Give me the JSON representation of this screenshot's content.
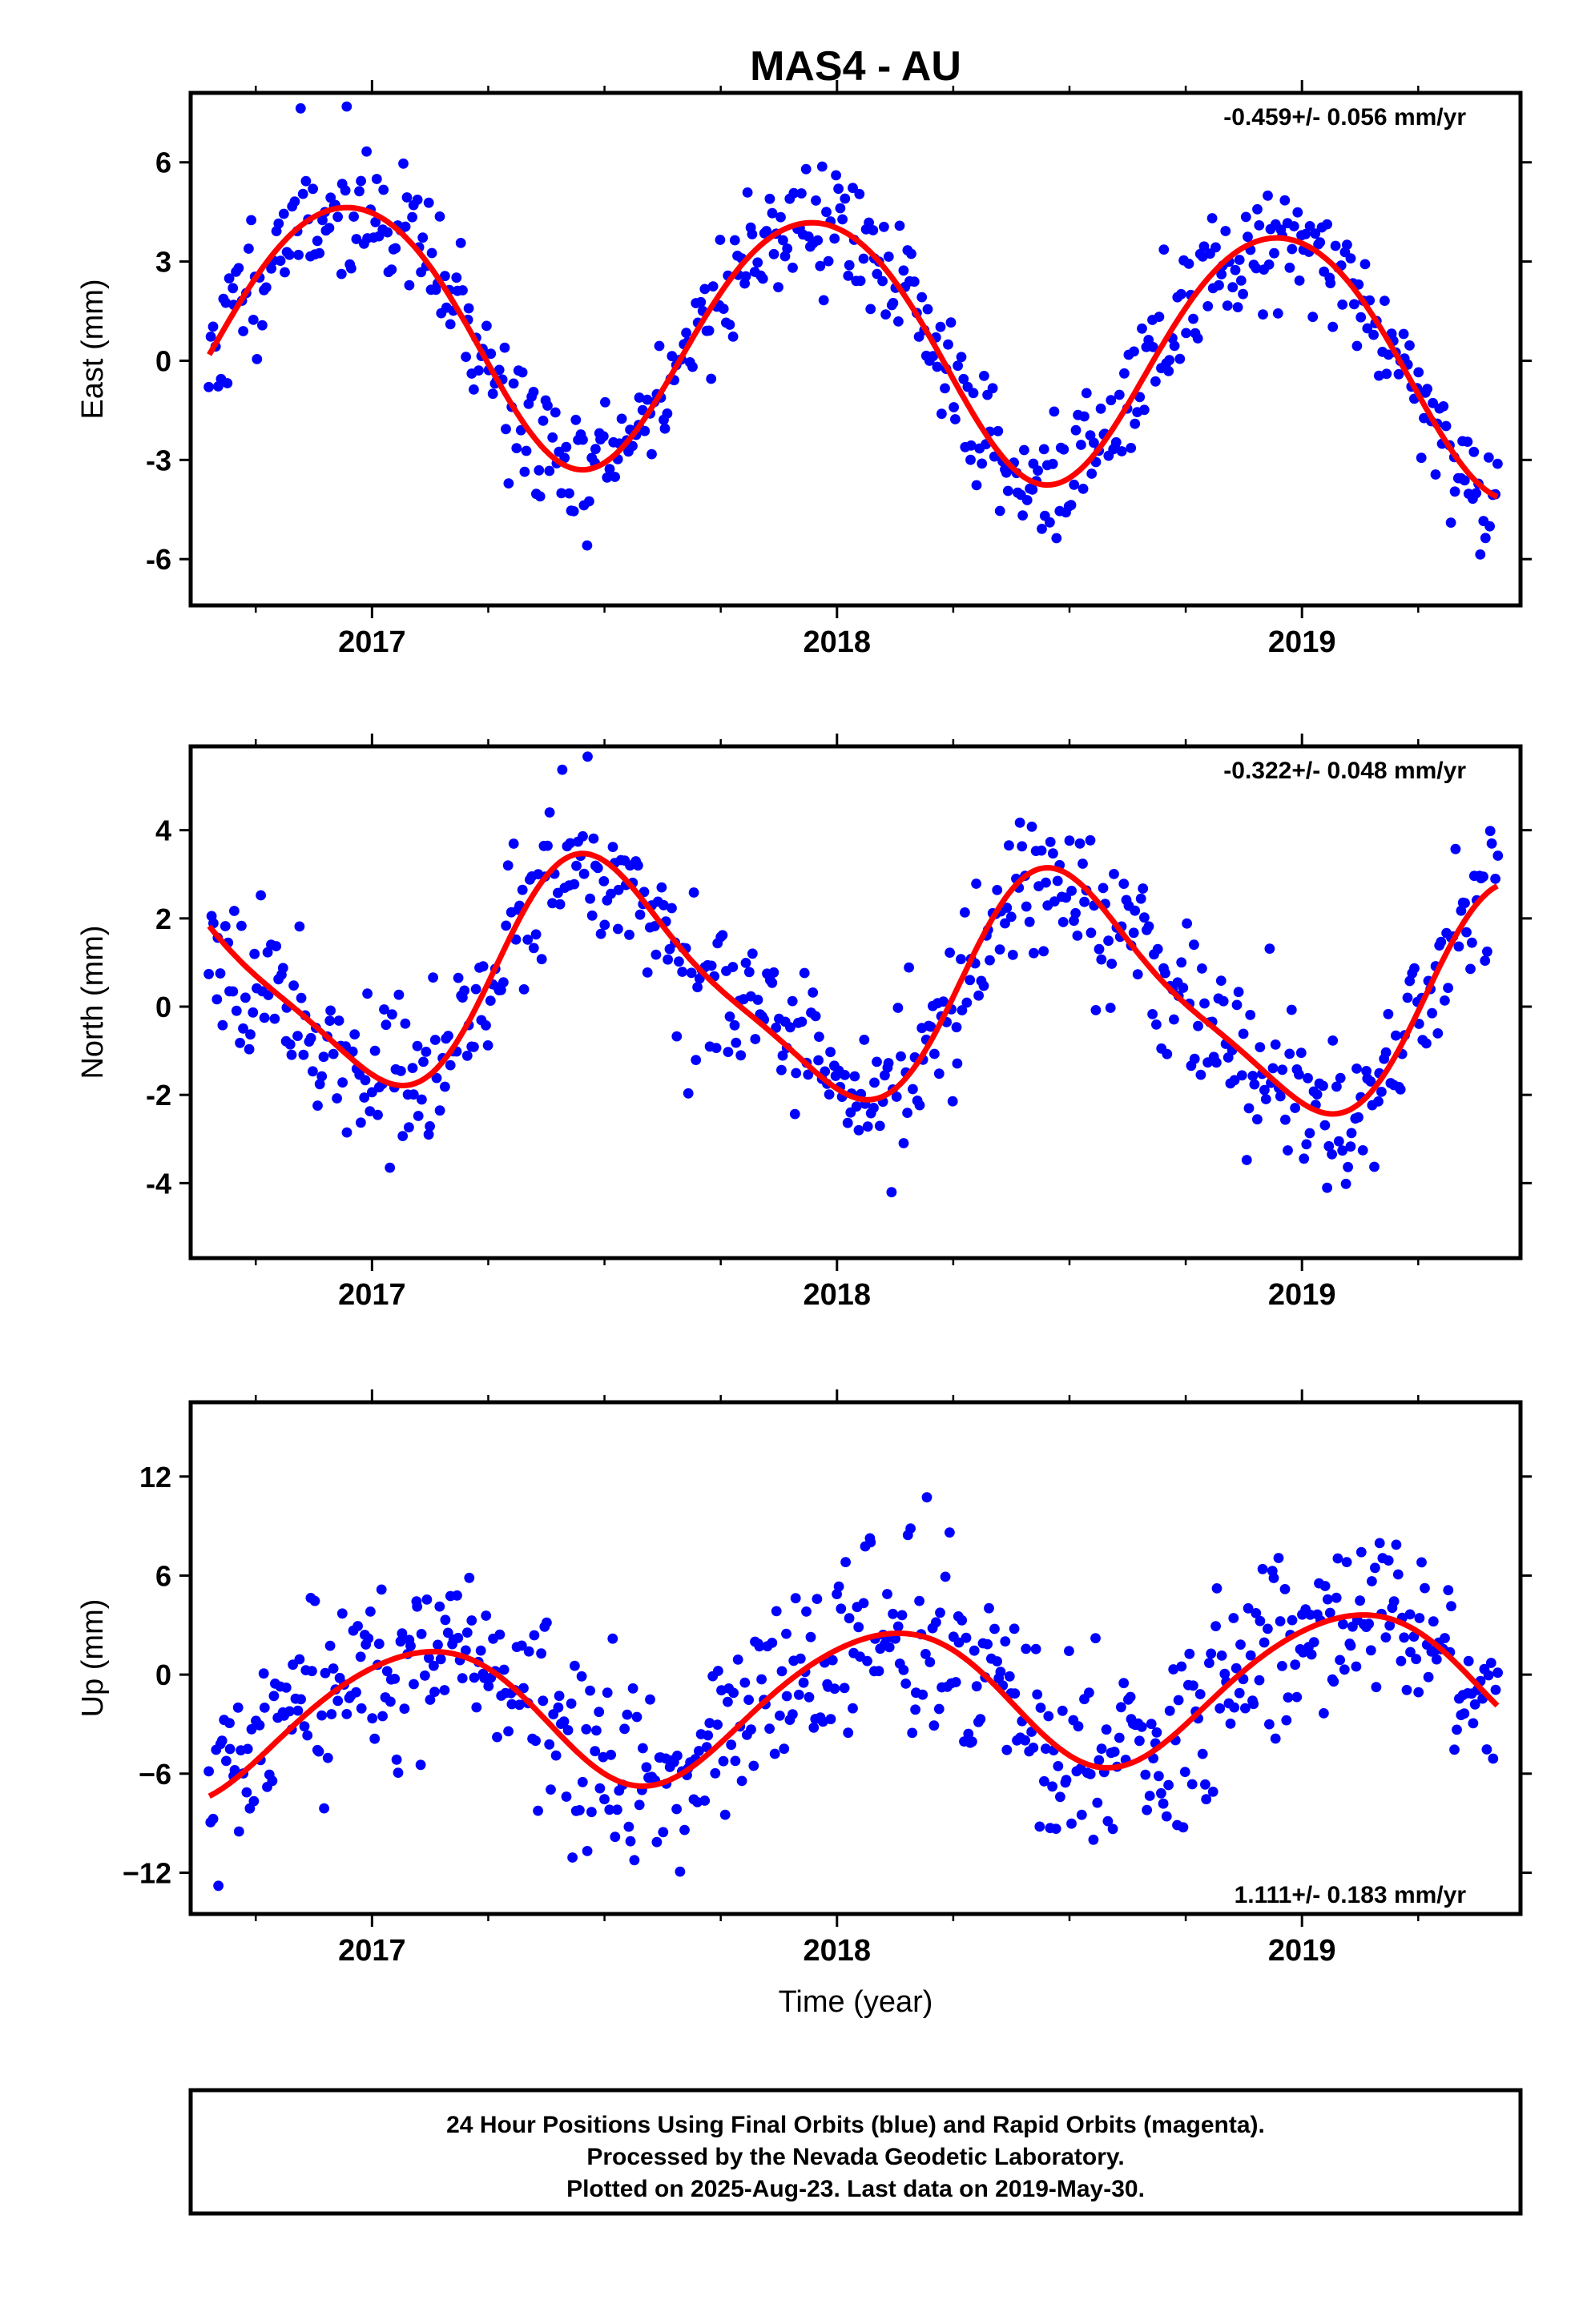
{
  "chart_data": {
    "type": "scatter",
    "title": "MAS4 - AU",
    "xlabel": "Time (year)",
    "xlim": [
      2016.61,
      2019.47
    ],
    "x_major_ticks": [
      2017,
      2018,
      2019
    ],
    "x_tick_labels": [
      "2017",
      "2018",
      "2019"
    ],
    "x_minor_ticks": [
      2016.75,
      2017.25,
      2017.5,
      2017.75,
      2018.25,
      2018.5,
      2018.75,
      2019.25
    ],
    "colors": {
      "final_orbits": "#0000ff",
      "rapid_orbits": "#ff00ff",
      "fit": "#ff0000",
      "frame": "#000000"
    },
    "panels": [
      {
        "component": "east",
        "ylabel": "East (mm)",
        "ylim": [
          -7.4,
          8.1
        ],
        "y_ticks": [
          -6,
          -3,
          0,
          3,
          6
        ],
        "y_tick_labels": [
          "-6",
          "-3",
          "0",
          "3",
          "6"
        ],
        "rate_label": "-0.459+/- 0.056 mm/yr",
        "rate_position": "top-right",
        "fit": {
          "x0": 2016.65,
          "x1": 2019.42,
          "offset": 0.55,
          "trend": -0.459,
          "annual_amp": 3.85,
          "annual_phase_year": 2016.95,
          "semiannual_amp": 0.25,
          "semiannual_phase_year": 2016.2
        },
        "scatter": {
          "count": 560,
          "noise_sd": 1.0,
          "seed": 11
        }
      },
      {
        "component": "north",
        "ylabel": "North (mm)",
        "ylim": [
          -5.7,
          5.9
        ],
        "y_ticks": [
          -4,
          -2,
          0,
          2,
          4
        ],
        "y_tick_labels": [
          "-4",
          "-2",
          "0",
          "2",
          "4"
        ],
        "rate_label": "-0.322+/- 0.048 mm/yr",
        "rate_position": "top-right",
        "fit": {
          "x0": 2016.65,
          "x1": 2019.42,
          "offset": 0.47,
          "trend": -0.322,
          "annual_amp": 2.5,
          "annual_phase_year": 2017.5,
          "semiannual_amp": 0.55,
          "semiannual_phase_year": 2016.4
        },
        "scatter": {
          "count": 560,
          "noise_sd": 0.85,
          "seed": 23
        }
      },
      {
        "component": "up",
        "ylabel": "Up (mm)",
        "ylim": [
          -14.5,
          16.5
        ],
        "y_ticks": [
          -12,
          -6,
          0,
          6,
          12
        ],
        "y_tick_labels": [
          "−12",
          "−6",
          "0",
          "6",
          "12"
        ],
        "rate_label": "1.111+/- 0.183 mm/yr",
        "rate_position": "bottom-right",
        "fit": {
          "x0": 2016.65,
          "x1": 2019.42,
          "offset": -1.65,
          "trend": 1.111,
          "annual_amp": 4.3,
          "annual_phase_year": 2017.1,
          "semiannual_amp": 0.4,
          "semiannual_phase_year": 2016.3
        },
        "scatter": {
          "count": 600,
          "noise_sd": 2.8,
          "seed": 37
        }
      }
    ]
  },
  "footer": {
    "line1": "24 Hour Positions Using Final Orbits (blue) and Rapid Orbits (magenta).",
    "line2": "Processed by the Nevada Geodetic Laboratory.",
    "line3": "Plotted on 2025-Aug-23. Last data on 2019-May-30."
  }
}
